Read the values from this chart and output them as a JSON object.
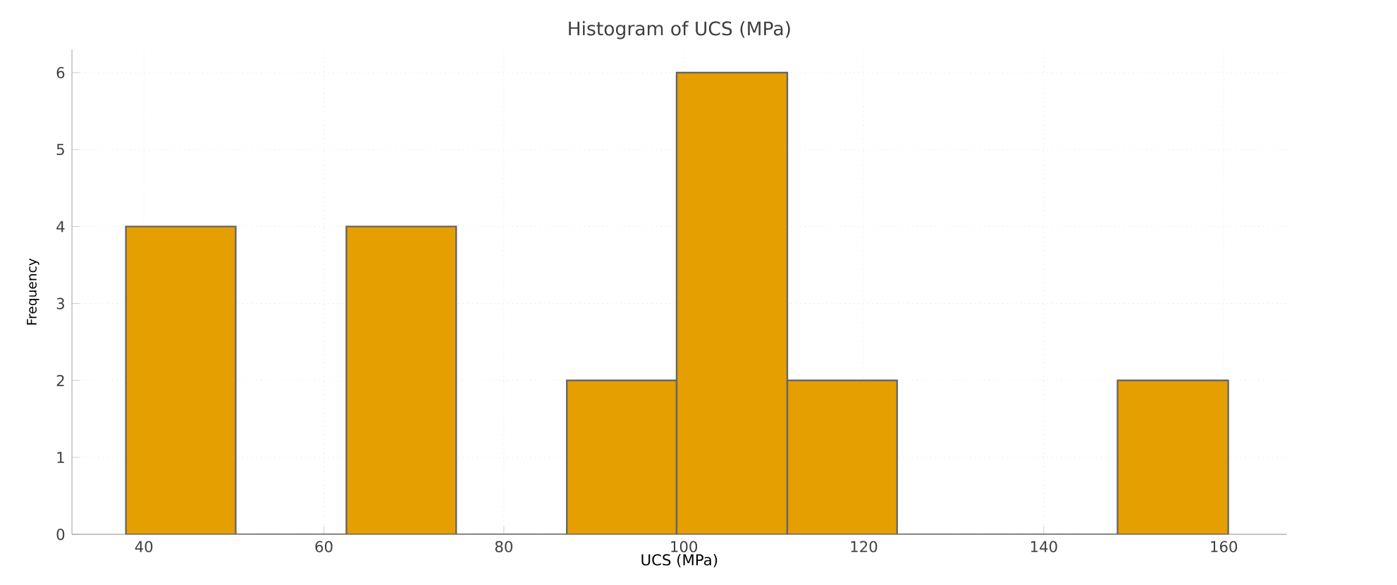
{
  "chart_data": {
    "type": "histogram",
    "title": "Histogram of UCS (MPa)",
    "xlabel": "UCS (MPa)",
    "ylabel": "Frequency",
    "bins": [
      38.0,
      50.2,
      62.5,
      74.7,
      87.0,
      99.2,
      111.5,
      123.7,
      148.2,
      160.5
    ],
    "values": [
      4,
      0,
      4,
      0,
      2,
      6,
      2,
      0,
      2
    ],
    "color": "#e69f00",
    "xlim": [
      32,
      167
    ],
    "xticks": [
      40,
      60,
      80,
      100,
      120,
      140,
      160
    ],
    "ylim": [
      0,
      6.3
    ],
    "yticks": [
      0,
      1,
      2,
      3,
      4,
      5,
      6
    ],
    "grid": true
  }
}
